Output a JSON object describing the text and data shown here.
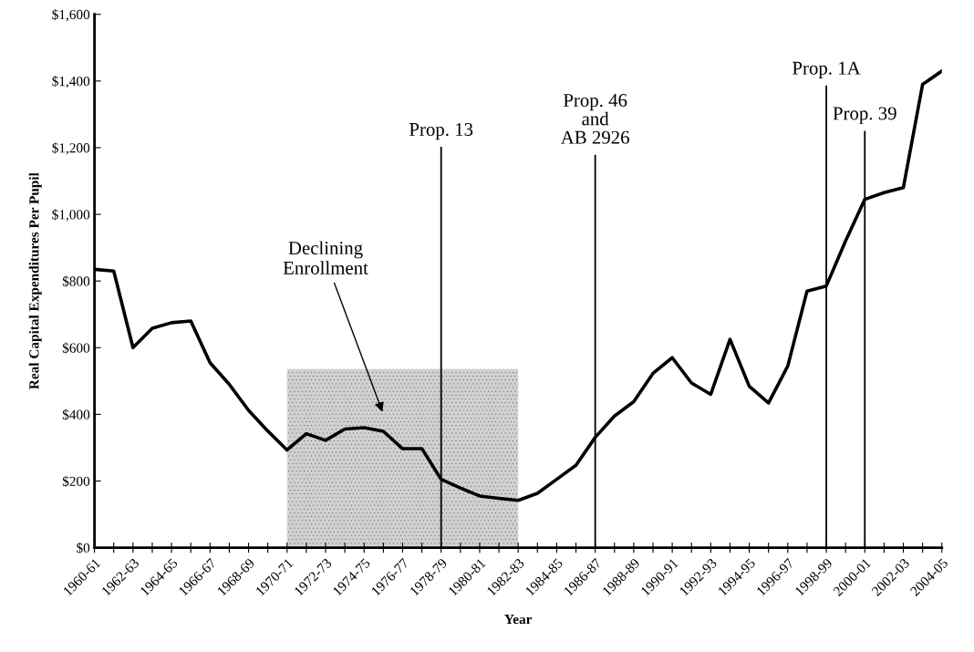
{
  "chart_data": {
    "type": "line",
    "xlabel": "Year",
    "ylabel": "Real Capital Expenditures Per Pupil",
    "categories": [
      "1960-61",
      null,
      "1962-63",
      null,
      "1964-65",
      null,
      "1966-67",
      null,
      "1968-69",
      null,
      "1970-71",
      null,
      "1972-73",
      null,
      "1974-75",
      null,
      "1976-77",
      null,
      "1978-79",
      null,
      "1980-81",
      null,
      "1982-83",
      null,
      "1984-85",
      null,
      "1986-87",
      null,
      "1988-89",
      null,
      "1990-91",
      null,
      "1992-93",
      null,
      "1994-95",
      null,
      "1996-97",
      null,
      "1998-99",
      null,
      "2000-01",
      null,
      "2002-03",
      null,
      "2004-05"
    ],
    "series": [
      {
        "color": "#000000",
        "values": [
          835,
          830,
          600,
          658,
          675,
          680,
          555,
          490,
          412,
          350,
          293,
          342,
          322,
          356,
          360,
          349,
          297,
          297,
          205,
          179,
          155,
          148,
          142,
          163,
          205,
          247,
          331,
          395,
          438,
          523,
          570,
          494,
          460,
          625,
          484,
          434,
          545,
          770,
          785,
          920,
          1045,
          1065,
          1080,
          1390,
          1430
        ]
      }
    ],
    "ylim": [
      0,
      1600
    ],
    "yticks": [
      {
        "value": 0,
        "label": "$0"
      },
      {
        "value": 200,
        "label": "$200"
      },
      {
        "value": 400,
        "label": "$400"
      },
      {
        "value": 600,
        "label": "$600"
      },
      {
        "value": 800,
        "label": "$800"
      },
      {
        "value": 1000,
        "label": "$1,000"
      },
      {
        "value": 1200,
        "label": "$1,200"
      },
      {
        "value": 1400,
        "label": "$1,400"
      },
      {
        "value": 1600,
        "label": "$1,600"
      }
    ],
    "ref_lines": [
      {
        "axis": "x",
        "value": "1978-79",
        "label": "Prop. 13",
        "color": "#000000"
      },
      {
        "axis": "x",
        "value": "1986-87",
        "label": "Prop. 46\nand\nAB 2926",
        "color": "#000000"
      },
      {
        "axis": "x",
        "value": "1998-99",
        "label": "Prop. 1A",
        "color": "#000000"
      },
      {
        "axis": "x",
        "value": "2000-01",
        "label": "Prop. 39",
        "color": "#000000"
      }
    ],
    "bands": [
      {
        "axis": "x",
        "from": "1970-71",
        "to": "1982-83",
        "label": "Declining\nEnrollment",
        "color": "#d0d0d0"
      }
    ],
    "grid": false,
    "legend": false,
    "marker": "none",
    "line_style": "solid"
  }
}
